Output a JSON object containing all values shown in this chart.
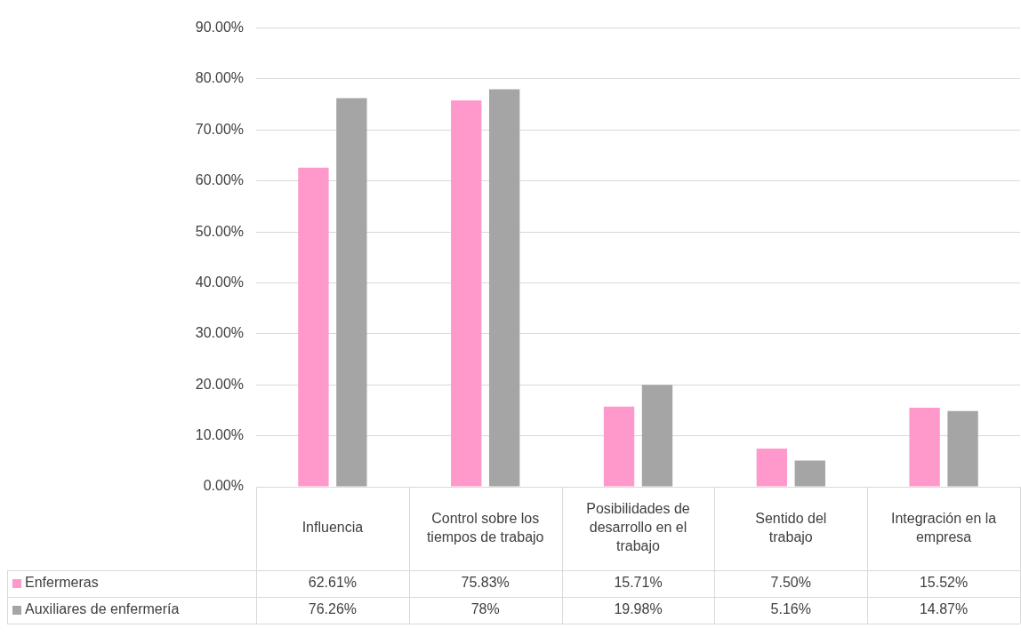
{
  "chart_data": {
    "type": "bar",
    "categories": [
      "Influencia",
      "Control sobre los tiempos de trabajo",
      "Posibilidades de desarrollo en el trabajo",
      "Sentido del trabajo",
      "Integración en la empresa"
    ],
    "series": [
      {
        "name": "Enfermeras",
        "color": "#ff99cc",
        "values": [
          62.61,
          75.83,
          15.71,
          7.5,
          15.52
        ],
        "value_labels": [
          "62.61%",
          "75.83%",
          "15.71%",
          "7.50%",
          "15.52%"
        ]
      },
      {
        "name": "Auxiliares de enfermería",
        "color": "#a5a5a5",
        "values": [
          76.26,
          78,
          19.98,
          5.16,
          14.87
        ],
        "value_labels": [
          "76.26%",
          "78%",
          "19.98%",
          "5.16%",
          "14.87%"
        ]
      }
    ],
    "ylim": [
      0,
      90
    ],
    "yticks": [
      {
        "value": 0,
        "label": "0.00%"
      },
      {
        "value": 10,
        "label": "10.00%"
      },
      {
        "value": 20,
        "label": "20.00%"
      },
      {
        "value": 30,
        "label": "30.00%"
      },
      {
        "value": 40,
        "label": "40.00%"
      },
      {
        "value": 50,
        "label": "50.00%"
      },
      {
        "value": 60,
        "label": "60.00%"
      },
      {
        "value": 70,
        "label": "70.00%"
      },
      {
        "value": 80,
        "label": "80.00%"
      },
      {
        "value": 90,
        "label": "90.00%"
      }
    ],
    "grid": "y",
    "legend": "bottom"
  }
}
